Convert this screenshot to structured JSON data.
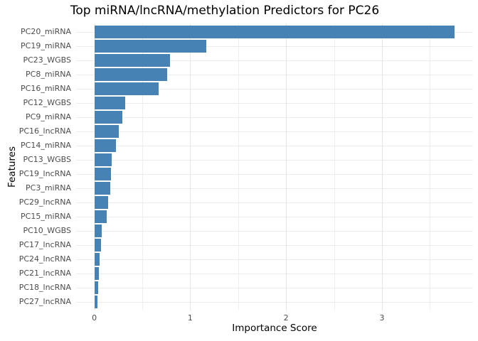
{
  "chart_data": {
    "type": "bar",
    "orientation": "horizontal",
    "title": "Top miRNA/lncRNA/methylation Predictors for PC26",
    "xlabel": "Importance Score",
    "ylabel": "Features",
    "categories": [
      "PC20_miRNA",
      "PC19_miRNA",
      "PC23_WGBS",
      "PC8_miRNA",
      "PC16_miRNA",
      "PC12_WGBS",
      "PC9_miRNA",
      "PC16_lncRNA",
      "PC14_miRNA",
      "PC13_WGBS",
      "PC19_lncRNA",
      "PC3_miRNA",
      "PC29_lncRNA",
      "PC15_miRNA",
      "PC10_WGBS",
      "PC17_lncRNA",
      "PC24_lncRNA",
      "PC21_lncRNA",
      "PC18_lncRNA",
      "PC27_lncRNA"
    ],
    "values": [
      3.76,
      1.17,
      0.79,
      0.76,
      0.67,
      0.32,
      0.29,
      0.255,
      0.225,
      0.18,
      0.172,
      0.165,
      0.143,
      0.128,
      0.076,
      0.068,
      0.055,
      0.046,
      0.039,
      0.035
    ],
    "xlim": [
      -0.19,
      3.95
    ],
    "xticks": [
      "0",
      "1",
      "2",
      "3"
    ],
    "xticks_values": [
      0,
      1,
      2,
      3
    ],
    "xticks_minor": [
      0.5,
      1.5,
      2.5,
      3.5
    ],
    "grid": "on",
    "legend": "none",
    "colors": {
      "bar": "#4682B4",
      "background": "#ffffff",
      "grid_major": "#e4e4e4",
      "grid_minor": "#efefef",
      "grid_row": "#ebebeb",
      "tick_label": "#4d4d4d",
      "title": "#000000"
    }
  }
}
